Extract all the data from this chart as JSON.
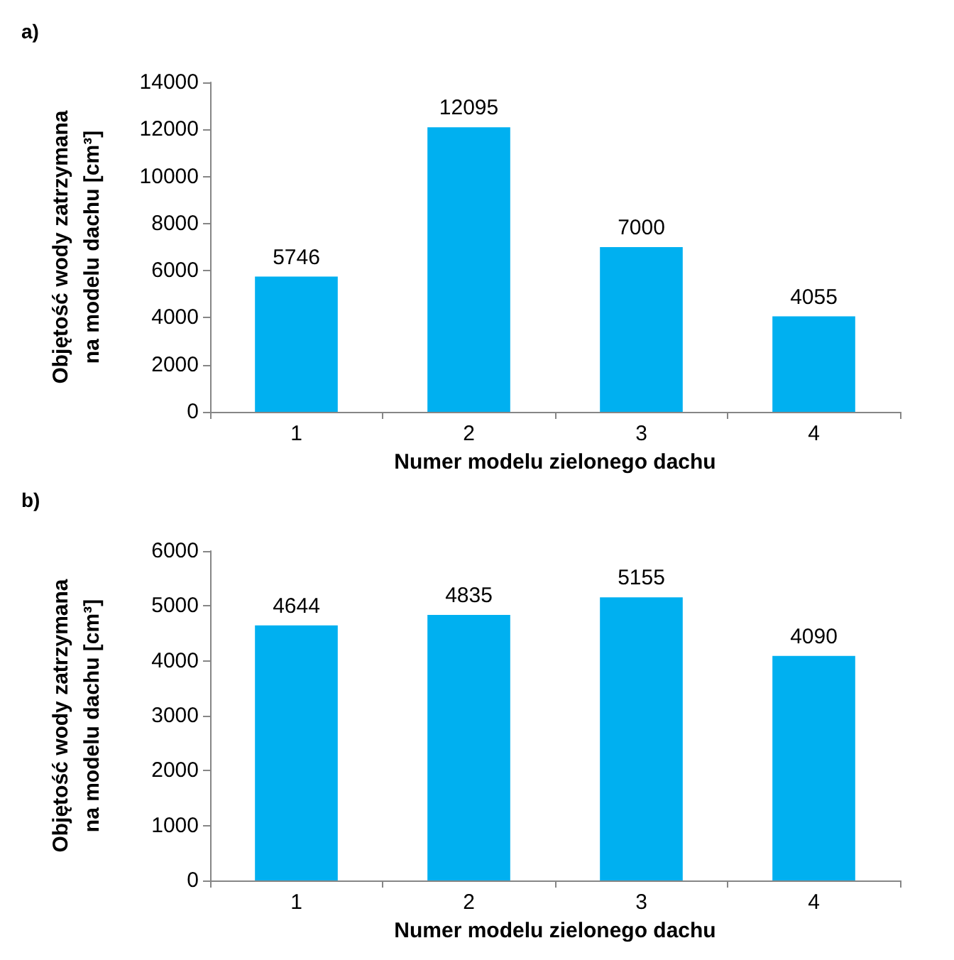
{
  "chart_data": [
    {
      "type": "bar",
      "title": "a)",
      "xlabel": "Numer modelu zielonego dachu",
      "ylabel": "Objętość wody zatrzymana\nna modelu dachu [cm³]",
      "categories": [
        "1",
        "2",
        "3",
        "4"
      ],
      "values": [
        5746,
        12095,
        7000,
        4055
      ],
      "color": "#00b0f0",
      "ylim": [
        0,
        14000
      ],
      "yticks": [
        0,
        2000,
        4000,
        6000,
        8000,
        10000,
        12000,
        14000
      ],
      "grid": false,
      "data_labels": true
    },
    {
      "type": "bar",
      "title": "b)",
      "xlabel": "Numer modelu zielonego dachu",
      "ylabel": "Objętość wody zatrzymana\nna modelu dachu [cm³]",
      "categories": [
        "1",
        "2",
        "3",
        "4"
      ],
      "values": [
        4644,
        4835,
        5155,
        4090
      ],
      "color": "#00b0f0",
      "ylim": [
        0,
        6000
      ],
      "yticks": [
        0,
        1000,
        2000,
        3000,
        4000,
        5000,
        6000
      ],
      "grid": false,
      "data_labels": true
    }
  ]
}
